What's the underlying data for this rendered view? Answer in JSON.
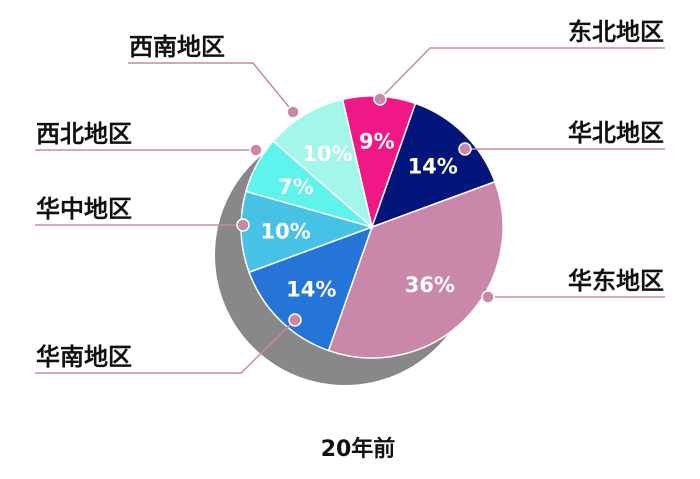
{
  "chart_data": {
    "type": "pie",
    "title": "20年前",
    "start_angle_deg": -13,
    "direction": "clockwise",
    "slices": [
      {
        "label": "东北地区",
        "value": 9,
        "display": "9%",
        "color": "#f01886"
      },
      {
        "label": "华北地区",
        "value": 14,
        "display": "14%",
        "color": "#02157a"
      },
      {
        "label": "华东地区",
        "value": 36,
        "display": "36%",
        "color": "#c987aa"
      },
      {
        "label": "华南地区",
        "value": 14,
        "display": "14%",
        "color": "#2575d8"
      },
      {
        "label": "华中地区",
        "value": 10,
        "display": "10%",
        "color": "#45c2e6"
      },
      {
        "label": "西北地区",
        "value": 7,
        "display": "7%",
        "color": "#5ef3ec"
      },
      {
        "label": "西南地区",
        "value": 10,
        "display": "10%",
        "color": "#a2f6ea"
      }
    ],
    "shadow_color": "#888888",
    "leader_color": "#c987aa"
  }
}
